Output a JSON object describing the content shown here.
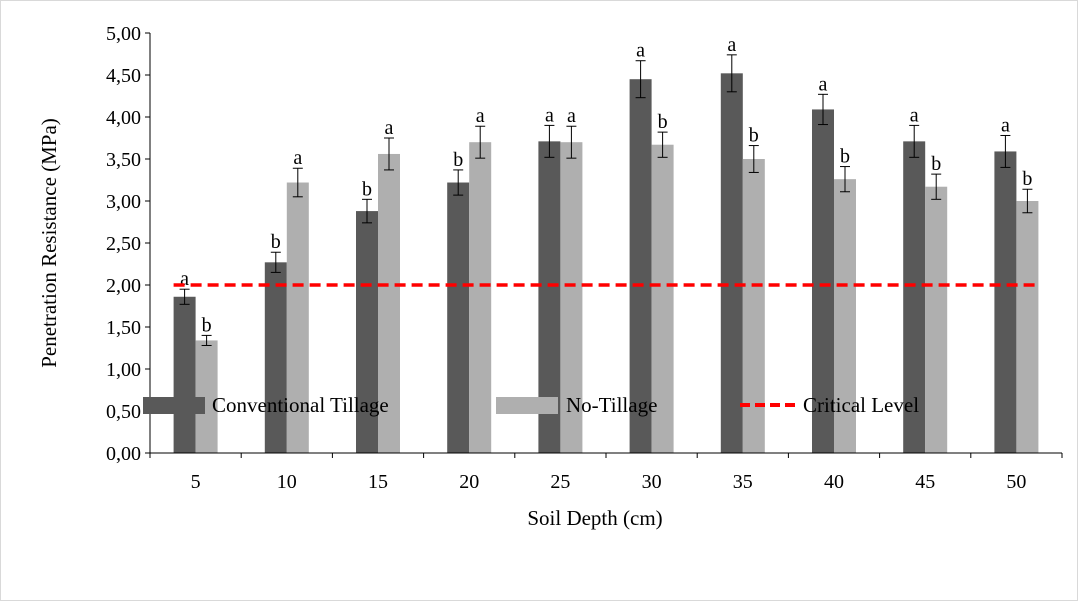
{
  "chart_data": {
    "type": "bar",
    "xlabel": "Soil Depth (cm)",
    "ylabel": "Penetration Resistance (MPa)",
    "categories": [
      "5",
      "10",
      "15",
      "20",
      "25",
      "30",
      "35",
      "40",
      "45",
      "50"
    ],
    "ylim": [
      0,
      5
    ],
    "yticks": [
      "0,00",
      "0,50",
      "1,00",
      "1,50",
      "2,00",
      "2,50",
      "3,00",
      "3,50",
      "4,00",
      "4,50",
      "5,00"
    ],
    "series": [
      {
        "name": "Conventional Tillage",
        "color": "#595959",
        "values": [
          1.86,
          2.27,
          2.88,
          3.22,
          3.71,
          4.45,
          4.52,
          4.09,
          3.71,
          3.59
        ],
        "errors": [
          0.09,
          0.12,
          0.14,
          0.15,
          0.19,
          0.22,
          0.22,
          0.18,
          0.19,
          0.19
        ],
        "letters": [
          "a",
          "b",
          "b",
          "b",
          "a",
          "a",
          "a",
          "a",
          "a",
          "a"
        ]
      },
      {
        "name": "No-Tillage",
        "color": "#AFAFAF",
        "values": [
          1.34,
          3.22,
          3.56,
          3.7,
          3.7,
          3.67,
          3.5,
          3.26,
          3.17,
          3.0
        ],
        "errors": [
          0.06,
          0.17,
          0.19,
          0.19,
          0.19,
          0.15,
          0.16,
          0.15,
          0.15,
          0.14
        ],
        "letters": [
          "b",
          "a",
          "a",
          "a",
          "a",
          "b",
          "b",
          "b",
          "b",
          "b"
        ]
      }
    ],
    "reference_line": {
      "name": "Critical Level",
      "value": 2.0,
      "color": "#FF0000",
      "style": "dashed"
    },
    "grid": false,
    "legend_position": "bottom"
  }
}
